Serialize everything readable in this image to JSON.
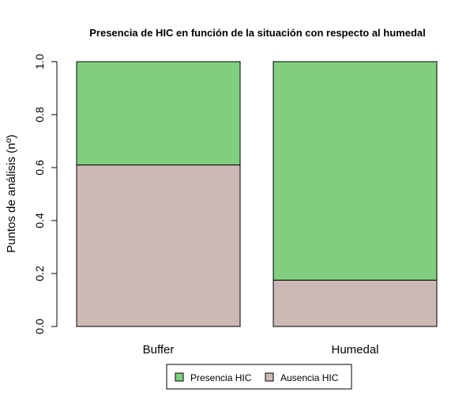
{
  "chart_data": {
    "type": "bar",
    "stacked": true,
    "title": "Presencia de HIC en función de la situación con respecto al humedal",
    "xlabel": "",
    "ylabel": "Puntos de análisis (nº)",
    "ylim": [
      0,
      1
    ],
    "yticks": [
      "0.0",
      "0.2",
      "0.4",
      "0.6",
      "0.8",
      "1.0"
    ],
    "categories": [
      "Buffer",
      "Humedal"
    ],
    "series": [
      {
        "name": "Ausencia HIC",
        "values": [
          0.61,
          0.175
        ],
        "color": "#ccb8b5"
      },
      {
        "name": "Presencia HIC",
        "values": [
          0.39,
          0.825
        ],
        "color": "#7fcf7f"
      }
    ],
    "legend": {
      "position": "bottom",
      "entries": [
        "Presencia HIC",
        "Ausencia HIC"
      ]
    },
    "grid": false
  }
}
